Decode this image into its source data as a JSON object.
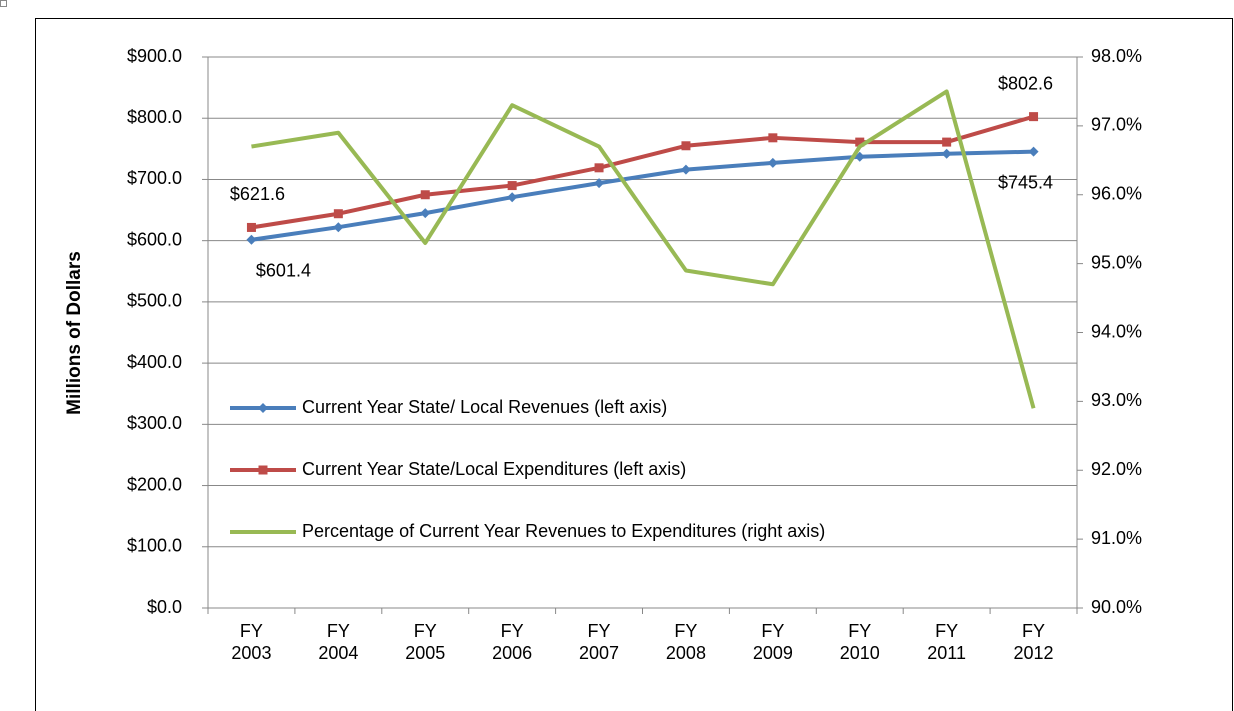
{
  "chart_data": {
    "type": "line",
    "y_label": "Millions of Dollars",
    "categories": [
      "FY 2003",
      "FY 2004",
      "FY 2005",
      "FY 2006",
      "FY 2007",
      "FY 2008",
      "FY 2009",
      "FY 2010",
      "FY 2011",
      "FY 2012"
    ],
    "series": [
      {
        "name": "Current Year State/ Local Revenues (left axis)",
        "color": "#4a7ebb",
        "marker": "diamond",
        "values": [
          601.4,
          622,
          645,
          671,
          694,
          716,
          727,
          737,
          742,
          745.4
        ],
        "value_labels": [
          "$601.4",
          null,
          null,
          null,
          null,
          null,
          null,
          null,
          null,
          "$745.4"
        ]
      },
      {
        "name": "Current Year State/Local Expenditures (left axis)",
        "color": "#be4b48",
        "marker": "square",
        "values": [
          621.6,
          644,
          675,
          690,
          719,
          755,
          768,
          761,
          761,
          802.6
        ],
        "value_labels": [
          "$621.6",
          null,
          null,
          null,
          null,
          null,
          null,
          null,
          null,
          "$802.6"
        ]
      },
      {
        "name": "Percentage of Current Year Revenues to Expenditures (right axis)",
        "color": "#98b954",
        "axis": "y2",
        "values": [
          96.7,
          96.9,
          95.3,
          97.3,
          96.7,
          94.9,
          94.7,
          96.7,
          97.5,
          92.9
        ]
      }
    ],
    "ylim": [
      0,
      900
    ],
    "yticks": [
      {
        "value": 0,
        "label": "$0.0"
      },
      {
        "value": 100,
        "label": "$100.0"
      },
      {
        "value": 200,
        "label": "$200.0"
      },
      {
        "value": 300,
        "label": "$300.0"
      },
      {
        "value": 400,
        "label": "$400.0"
      },
      {
        "value": 500,
        "label": "$500.0"
      },
      {
        "value": 600,
        "label": "$600.0"
      },
      {
        "value": 700,
        "label": "$700.0"
      },
      {
        "value": 800,
        "label": "$800.0"
      },
      {
        "value": 900,
        "label": "$900.0"
      }
    ],
    "y2lim": [
      90,
      98
    ],
    "y2ticks": [
      {
        "value": 90,
        "label": "90.0%"
      },
      {
        "value": 91,
        "label": "91.0%"
      },
      {
        "value": 92,
        "label": "92.0%"
      },
      {
        "value": 93,
        "label": "93.0%"
      },
      {
        "value": 94,
        "label": "94.0%"
      },
      {
        "value": 95,
        "label": "95.0%"
      },
      {
        "value": 96,
        "label": "96.0%"
      },
      {
        "value": 97,
        "label": "97.0%"
      },
      {
        "value": 98,
        "label": "98.0%"
      }
    ],
    "grid": true,
    "legend": "inside-left"
  }
}
